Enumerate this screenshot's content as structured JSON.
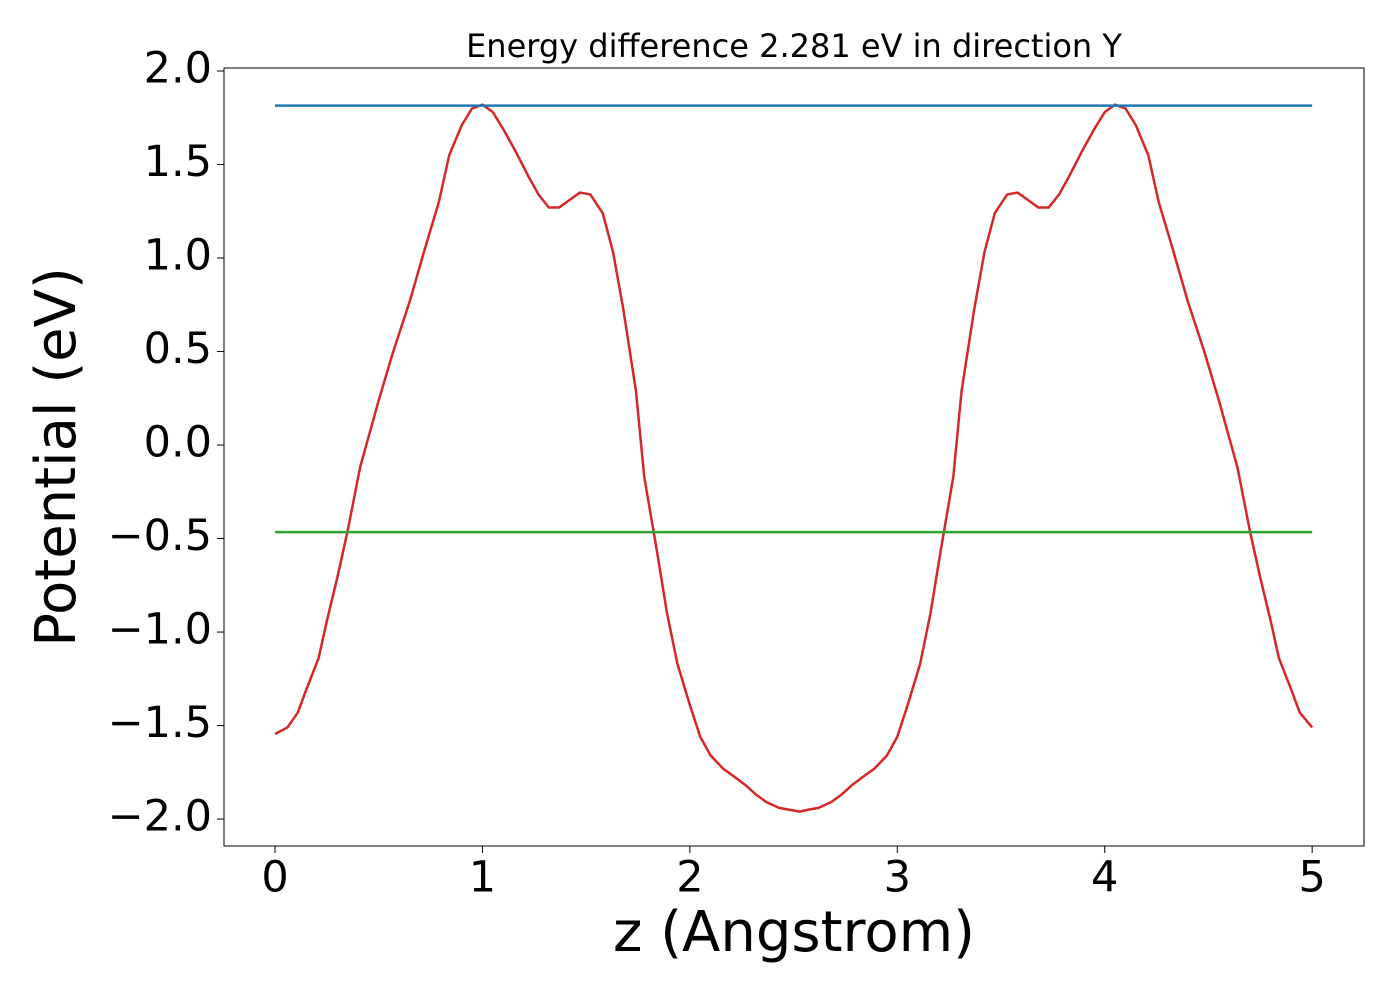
{
  "chart_data": {
    "type": "line",
    "title": "Energy difference 2.281 eV in direction Y",
    "x_label": "z (Angstrom)",
    "y_label": "Potential (eV)",
    "xlim": [
      -0.246,
      5.25
    ],
    "ylim": [
      -2.144,
      2.016
    ],
    "xticks": [
      0,
      1,
      2,
      3,
      4,
      5
    ],
    "yticks": [
      {
        "value": 2.0,
        "label": "2.0"
      },
      {
        "value": 1.5,
        "label": "1.5"
      },
      {
        "value": 1.0,
        "label": "1.0"
      },
      {
        "value": 0.5,
        "label": "0.5"
      },
      {
        "value": 0.0,
        "label": "0.0"
      },
      {
        "value": -0.5,
        "label": "−0.5"
      },
      {
        "value": -1.0,
        "label": "−1.0"
      },
      {
        "value": -1.5,
        "label": "−1.5"
      },
      {
        "value": -2.0,
        "label": "−2.0"
      }
    ],
    "grid": false,
    "series": [
      {
        "color": "#d62728",
        "x": [
          0,
          0.06,
          0.11,
          0.15,
          0.21,
          0.25,
          0.3,
          0.35,
          0.41,
          0.5,
          0.57,
          0.65,
          0.72,
          0.79,
          0.84,
          0.9,
          0.95,
          1.0,
          1.05,
          1.1,
          1.16,
          1.22,
          1.27,
          1.32,
          1.37,
          1.42,
          1.47,
          1.52,
          1.58,
          1.63,
          1.68,
          1.74,
          1.78,
          1.84,
          1.89,
          1.94,
          2.0,
          2.05,
          2.1,
          2.16,
          2.21,
          2.27,
          2.32,
          2.37,
          2.43,
          2.48,
          2.53,
          2.57,
          2.62,
          2.68,
          2.73,
          2.78,
          2.84,
          2.89,
          2.95,
          3.0,
          3.05,
          3.11,
          3.16,
          3.21,
          3.27,
          3.31,
          3.37,
          3.42,
          3.47,
          3.53,
          3.58,
          3.63,
          3.68,
          3.73,
          3.78,
          3.83,
          3.89,
          3.95,
          4.0,
          4.05,
          4.1,
          4.15,
          4.21,
          4.26,
          4.33,
          4.4,
          4.48,
          4.55,
          4.64,
          4.7,
          4.75,
          4.8,
          4.84,
          4.9,
          4.94,
          5.0
        ],
        "values": [
          -1.545,
          -1.51,
          -1.43,
          -1.31,
          -1.14,
          -0.94,
          -0.71,
          -0.46,
          -0.12,
          0.24,
          0.5,
          0.77,
          1.04,
          1.3,
          1.55,
          1.71,
          1.8,
          1.82,
          1.78,
          1.69,
          1.57,
          1.44,
          1.34,
          1.27,
          1.27,
          1.31,
          1.35,
          1.34,
          1.24,
          1.03,
          0.72,
          0.29,
          -0.17,
          -0.56,
          -0.9,
          -1.17,
          -1.39,
          -1.56,
          -1.66,
          -1.73,
          -1.77,
          -1.82,
          -1.87,
          -1.91,
          -1.94,
          -1.95,
          -1.96,
          -1.95,
          -1.94,
          -1.91,
          -1.87,
          -1.82,
          -1.77,
          -1.73,
          -1.66,
          -1.56,
          -1.39,
          -1.17,
          -0.9,
          -0.56,
          -0.17,
          0.29,
          0.72,
          1.03,
          1.24,
          1.34,
          1.35,
          1.31,
          1.27,
          1.27,
          1.34,
          1.44,
          1.57,
          1.69,
          1.78,
          1.82,
          1.8,
          1.71,
          1.55,
          1.3,
          1.04,
          0.77,
          0.5,
          0.24,
          -0.12,
          -0.46,
          -0.71,
          -0.94,
          -1.14,
          -1.31,
          -1.43,
          -1.51
        ]
      },
      {
        "color": "#1f77b4",
        "x": [
          0,
          5
        ],
        "values": [
          1.815,
          1.815
        ]
      },
      {
        "color": "#2ca02c",
        "x": [
          0,
          5
        ],
        "values": [
          -0.466,
          -0.466
        ]
      }
    ]
  }
}
